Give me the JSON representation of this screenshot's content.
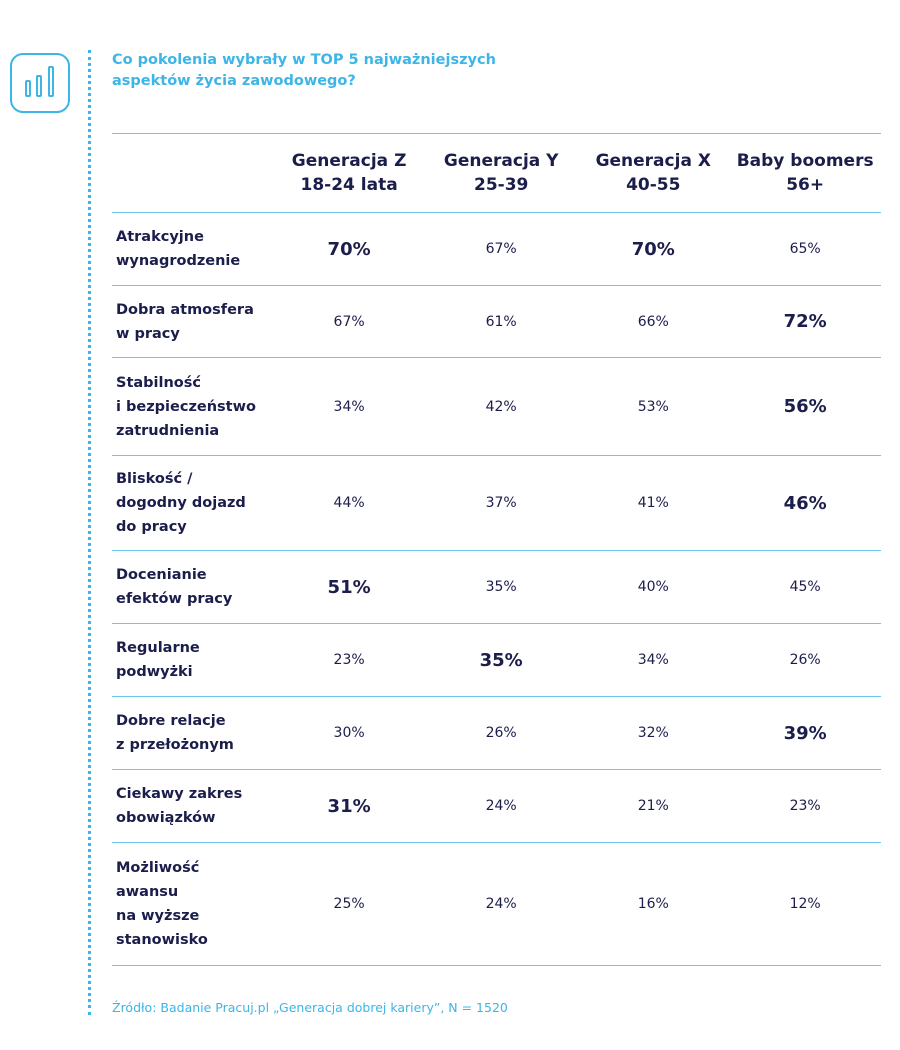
{
  "title": "Co pokolenia wybrały w TOP 5 najważniejszych aspektów życia zawodowego?",
  "icon": "bar-chart-icon",
  "colors": {
    "accent": "#3db5e6",
    "text": "#1b1d4b"
  },
  "columns": [
    {
      "name": "Generacja Z",
      "range": "18-24 lata"
    },
    {
      "name": "Generacja Y",
      "range": "25-39"
    },
    {
      "name": "Generacja X",
      "range": "40-55"
    },
    {
      "name": "Baby boomers",
      "range": "56+"
    }
  ],
  "rows": [
    {
      "label": [
        "Atrakcyjne",
        "wynagrodzenie"
      ],
      "values": [
        "70%",
        "67%",
        "70%",
        "65%"
      ],
      "bold": [
        true,
        false,
        true,
        false
      ]
    },
    {
      "label": [
        "Dobra atmosfera",
        "w pracy"
      ],
      "values": [
        "67%",
        "61%",
        "66%",
        "72%"
      ],
      "bold": [
        false,
        false,
        false,
        true
      ]
    },
    {
      "label": [
        "Stabilność",
        "i bezpieczeństwo",
        "zatrudnienia"
      ],
      "values": [
        "34%",
        "42%",
        "53%",
        "56%"
      ],
      "bold": [
        false,
        false,
        false,
        true
      ]
    },
    {
      "label": [
        "Bliskość /",
        "dogodny dojazd",
        "do pracy"
      ],
      "values": [
        "44%",
        "37%",
        "41%",
        "46%"
      ],
      "bold": [
        false,
        false,
        false,
        true
      ]
    },
    {
      "label": [
        "Docenianie",
        "efektów pracy"
      ],
      "values": [
        "51%",
        "35%",
        "40%",
        "45%"
      ],
      "bold": [
        true,
        false,
        false,
        false
      ]
    },
    {
      "label": [
        "Regularne",
        "podwyżki"
      ],
      "values": [
        "23%",
        "35%",
        "34%",
        "26%"
      ],
      "bold": [
        false,
        true,
        false,
        false
      ]
    },
    {
      "label": [
        "Dobre relacje",
        "z przełożonym"
      ],
      "values": [
        "30%",
        "26%",
        "32%",
        "39%"
      ],
      "bold": [
        false,
        false,
        false,
        true
      ]
    },
    {
      "label": [
        "Ciekawy zakres",
        "obowiązków"
      ],
      "values": [
        "31%",
        "24%",
        "21%",
        "23%"
      ],
      "bold": [
        true,
        false,
        false,
        false
      ]
    },
    {
      "label": [
        "Możliwość",
        "awansu",
        "na wyższe",
        "stanowisko"
      ],
      "values": [
        "25%",
        "24%",
        "16%",
        "12%"
      ],
      "bold": [
        false,
        false,
        false,
        false
      ]
    }
  ],
  "source": "Źródło: Badanie Pracuj.pl „Generacja dobrej kariery”, N = 1520"
}
